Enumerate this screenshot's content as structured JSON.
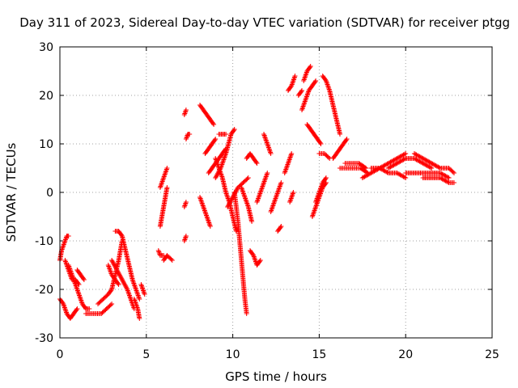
{
  "chart_data": {
    "type": "scatter",
    "title": "Day 311 of 2023, Sidereal Day-to-day VTEC variation (SDTVAR) for receiver ptgg",
    "xlabel": "GPS time / hours",
    "ylabel": "SDTVAR / TECUs",
    "xlim": [
      0,
      25
    ],
    "ylim": [
      -30,
      30
    ],
    "xticks": [
      0,
      5,
      10,
      15,
      20,
      25
    ],
    "yticks": [
      -30,
      -20,
      -10,
      0,
      10,
      20,
      30
    ],
    "grid": true,
    "marker": "+",
    "color": "#ff0000",
    "series": [
      {
        "name": "SDTVAR",
        "tracks": [
          [
            [
              0.0,
              -14
            ],
            [
              0.1,
              -12
            ],
            [
              0.2,
              -11
            ],
            [
              0.3,
              -10
            ],
            [
              0.4,
              -9
            ],
            [
              0.5,
              -9
            ]
          ],
          [
            [
              0.0,
              -22
            ],
            [
              0.2,
              -23
            ],
            [
              0.4,
              -25
            ],
            [
              0.6,
              -26
            ],
            [
              0.8,
              -25
            ],
            [
              1.0,
              -24
            ]
          ],
          [
            [
              0.5,
              -15
            ],
            [
              0.7,
              -17
            ],
            [
              0.9,
              -19
            ],
            [
              1.1,
              -21
            ],
            [
              1.3,
              -23
            ],
            [
              1.5,
              -24
            ],
            [
              1.7,
              -24
            ]
          ],
          [
            [
              0.3,
              -14
            ],
            [
              0.5,
              -16
            ],
            [
              0.7,
              -18
            ],
            [
              0.9,
              -18
            ],
            [
              1.1,
              -19
            ]
          ],
          [
            [
              1.0,
              -16
            ],
            [
              1.2,
              -17
            ],
            [
              1.4,
              -18
            ]
          ],
          [
            [
              1.5,
              -25
            ],
            [
              1.8,
              -25
            ],
            [
              2.1,
              -25
            ],
            [
              2.4,
              -25
            ],
            [
              2.7,
              -24
            ],
            [
              3.0,
              -23
            ]
          ],
          [
            [
              2.2,
              -23
            ],
            [
              2.5,
              -22
            ],
            [
              2.8,
              -21
            ],
            [
              3.0,
              -20
            ],
            [
              3.2,
              -17
            ],
            [
              3.4,
              -14
            ],
            [
              3.5,
              -12
            ],
            [
              3.6,
              -10
            ]
          ],
          [
            [
              3.2,
              -8
            ],
            [
              3.4,
              -8
            ],
            [
              3.6,
              -9
            ],
            [
              3.8,
              -12
            ],
            [
              4.0,
              -15
            ],
            [
              4.2,
              -18
            ],
            [
              4.4,
              -20
            ],
            [
              4.6,
              -22
            ]
          ],
          [
            [
              3.0,
              -14
            ],
            [
              3.3,
              -16
            ],
            [
              3.6,
              -18
            ],
            [
              3.9,
              -20
            ],
            [
              4.1,
              -22
            ],
            [
              4.3,
              -24
            ]
          ],
          [
            [
              2.8,
              -15
            ],
            [
              3.0,
              -17
            ],
            [
              3.2,
              -18
            ],
            [
              3.4,
              -19
            ]
          ],
          [
            [
              4.3,
              -22
            ],
            [
              4.5,
              -24
            ],
            [
              4.6,
              -26
            ]
          ],
          [
            [
              4.7,
              -19
            ],
            [
              4.8,
              -20
            ],
            [
              4.9,
              -21
            ]
          ],
          [
            [
              5.7,
              -12
            ],
            [
              5.8,
              -13
            ],
            [
              6.0,
              -13
            ]
          ],
          [
            [
              5.8,
              -7
            ],
            [
              5.9,
              -5
            ],
            [
              6.0,
              -3
            ],
            [
              6.1,
              -1
            ],
            [
              6.2,
              1
            ]
          ],
          [
            [
              5.8,
              1
            ],
            [
              5.9,
              2
            ],
            [
              6.0,
              3
            ],
            [
              6.1,
              4
            ],
            [
              6.2,
              5
            ]
          ],
          [
            [
              6.0,
              -14
            ],
            [
              6.2,
              -13
            ],
            [
              6.5,
              -14
            ]
          ],
          [
            [
              7.2,
              -10
            ],
            [
              7.3,
              -9
            ]
          ],
          [
            [
              7.2,
              -3
            ],
            [
              7.3,
              -2
            ]
          ],
          [
            [
              7.3,
              11
            ],
            [
              7.4,
              12
            ],
            [
              7.5,
              12
            ]
          ],
          [
            [
              7.2,
              16
            ],
            [
              7.3,
              17
            ]
          ],
          [
            [
              8.1,
              -1
            ],
            [
              8.2,
              -2
            ],
            [
              8.3,
              -3
            ],
            [
              8.4,
              -4
            ],
            [
              8.5,
              -5
            ],
            [
              8.6,
              -6
            ],
            [
              8.7,
              -7
            ]
          ],
          [
            [
              8.1,
              18
            ],
            [
              8.3,
              17
            ],
            [
              8.5,
              16
            ],
            [
              8.7,
              15
            ],
            [
              8.9,
              14
            ]
          ],
          [
            [
              8.4,
              8
            ],
            [
              8.6,
              9
            ],
            [
              8.8,
              10
            ],
            [
              9.0,
              11
            ]
          ],
          [
            [
              8.6,
              4
            ],
            [
              8.8,
              5
            ],
            [
              9.0,
              6
            ],
            [
              9.2,
              7
            ],
            [
              9.4,
              8
            ],
            [
              9.6,
              9
            ]
          ],
          [
            [
              9.0,
              7
            ],
            [
              9.2,
              5
            ],
            [
              9.4,
              3
            ],
            [
              9.6,
              0
            ],
            [
              9.8,
              -2
            ],
            [
              10.0,
              -5
            ],
            [
              10.2,
              -8
            ]
          ],
          [
            [
              9.2,
              12
            ],
            [
              9.4,
              12
            ],
            [
              9.6,
              12
            ]
          ],
          [
            [
              9.0,
              3
            ],
            [
              9.3,
              5
            ],
            [
              9.6,
              8
            ],
            [
              9.9,
              12
            ],
            [
              10.1,
              13
            ]
          ],
          [
            [
              10.1,
              0
            ],
            [
              10.2,
              -3
            ],
            [
              10.3,
              -6
            ],
            [
              10.4,
              -10
            ],
            [
              10.5,
              -14
            ],
            [
              10.6,
              -18
            ],
            [
              10.7,
              -22
            ],
            [
              10.8,
              -25
            ]
          ],
          [
            [
              9.7,
              -3
            ],
            [
              10.0,
              -1
            ],
            [
              10.3,
              1
            ],
            [
              10.6,
              2
            ],
            [
              10.9,
              3
            ]
          ],
          [
            [
              10.5,
              1
            ],
            [
              10.7,
              -1
            ],
            [
              10.9,
              -3
            ],
            [
              11.1,
              -6
            ]
          ],
          [
            [
              10.8,
              7
            ],
            [
              11.0,
              8
            ],
            [
              11.2,
              7
            ],
            [
              11.4,
              6
            ]
          ],
          [
            [
              11.0,
              -12
            ],
            [
              11.2,
              -13
            ],
            [
              11.4,
              -15
            ],
            [
              11.6,
              -14
            ]
          ],
          [
            [
              11.4,
              -2
            ],
            [
              11.6,
              0
            ],
            [
              11.8,
              2
            ],
            [
              12.0,
              4
            ]
          ],
          [
            [
              11.8,
              12
            ],
            [
              12.0,
              10
            ],
            [
              12.2,
              8
            ]
          ],
          [
            [
              12.2,
              -4
            ],
            [
              12.4,
              -2
            ],
            [
              12.6,
              0
            ],
            [
              12.8,
              2
            ]
          ],
          [
            [
              12.6,
              -8
            ],
            [
              12.8,
              -7
            ]
          ],
          [
            [
              13.0,
              4
            ],
            [
              13.2,
              6
            ],
            [
              13.4,
              8
            ]
          ],
          [
            [
              13.2,
              21
            ],
            [
              13.4,
              22
            ],
            [
              13.6,
              24
            ]
          ],
          [
            [
              13.3,
              -2
            ],
            [
              13.5,
              0
            ]
          ],
          [
            [
              13.8,
              20
            ],
            [
              14.0,
              21
            ]
          ],
          [
            [
              14.0,
              17
            ],
            [
              14.2,
              19
            ],
            [
              14.4,
              21
            ],
            [
              14.6,
              22
            ],
            [
              14.8,
              23
            ]
          ],
          [
            [
              14.1,
              23
            ],
            [
              14.3,
              25
            ],
            [
              14.5,
              26
            ]
          ],
          [
            [
              14.3,
              14
            ],
            [
              14.5,
              13
            ],
            [
              14.7,
              12
            ],
            [
              14.9,
              11
            ],
            [
              15.1,
              10
            ]
          ],
          [
            [
              14.6,
              -5
            ],
            [
              14.8,
              -3
            ],
            [
              15.0,
              -1
            ],
            [
              15.2,
              1
            ],
            [
              15.4,
              2
            ]
          ],
          [
            [
              14.8,
              -2
            ],
            [
              15.0,
              0
            ],
            [
              15.2,
              2
            ],
            [
              15.4,
              3
            ]
          ],
          [
            [
              15.2,
              24
            ],
            [
              15.4,
              23
            ],
            [
              15.6,
              21
            ],
            [
              15.8,
              18
            ],
            [
              16.0,
              15
            ],
            [
              16.2,
              12
            ]
          ],
          [
            [
              15.0,
              8
            ],
            [
              15.3,
              8
            ],
            [
              15.6,
              7
            ]
          ],
          [
            [
              15.8,
              7
            ],
            [
              16.0,
              8
            ],
            [
              16.2,
              9
            ],
            [
              16.4,
              10
            ],
            [
              16.6,
              11
            ]
          ],
          [
            [
              16.2,
              5
            ],
            [
              16.6,
              5
            ],
            [
              17.0,
              5
            ],
            [
              17.4,
              5
            ],
            [
              17.8,
              4
            ]
          ],
          [
            [
              16.5,
              6
            ],
            [
              16.9,
              6
            ],
            [
              17.3,
              6
            ],
            [
              17.7,
              5
            ]
          ],
          [
            [
              17.5,
              3
            ],
            [
              18.0,
              4
            ],
            [
              18.5,
              5
            ],
            [
              19.0,
              6
            ],
            [
              19.5,
              7
            ],
            [
              20.0,
              8
            ]
          ],
          [
            [
              18.0,
              5
            ],
            [
              18.5,
              5
            ],
            [
              19.0,
              4
            ],
            [
              19.5,
              4
            ],
            [
              20.0,
              3
            ]
          ],
          [
            [
              19.0,
              5
            ],
            [
              19.5,
              6
            ],
            [
              20.0,
              7
            ],
            [
              20.5,
              7
            ],
            [
              21.0,
              6
            ],
            [
              21.5,
              5
            ]
          ],
          [
            [
              20.0,
              4
            ],
            [
              20.5,
              4
            ],
            [
              21.0,
              4
            ],
            [
              21.5,
              4
            ],
            [
              22.0,
              4
            ],
            [
              22.5,
              3
            ]
          ],
          [
            [
              20.5,
              8
            ],
            [
              21.0,
              7
            ],
            [
              21.5,
              6
            ],
            [
              22.0,
              5
            ],
            [
              22.5,
              5
            ],
            [
              22.8,
              4
            ]
          ],
          [
            [
              21.0,
              3
            ],
            [
              21.5,
              3
            ],
            [
              22.0,
              3
            ],
            [
              22.5,
              2
            ],
            [
              22.8,
              2
            ]
          ]
        ]
      }
    ]
  }
}
